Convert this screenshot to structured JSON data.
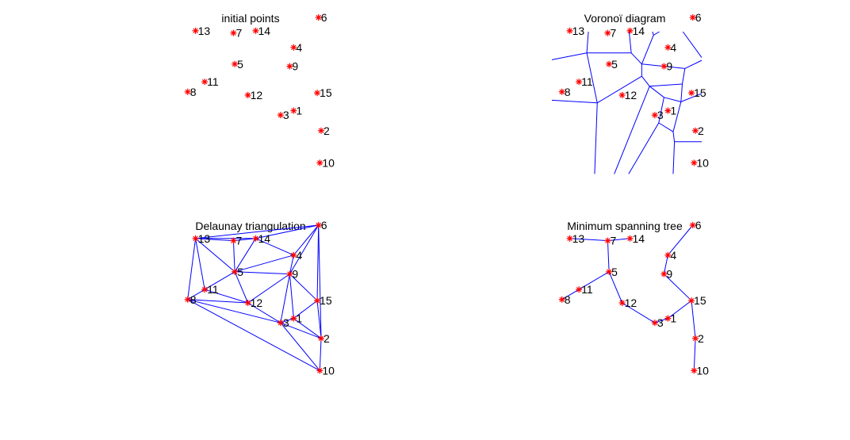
{
  "figure": {
    "edge_color": "#0000ff",
    "point_color": "#ff0000",
    "marker": "asterisk",
    "points": [
      {
        "id": "1",
        "label": "1",
        "x": 0.79,
        "y": 0.56
      },
      {
        "id": "2",
        "label": "2",
        "x": 1.0,
        "y": 0.38
      },
      {
        "id": "3",
        "label": "3",
        "x": 0.69,
        "y": 0.52
      },
      {
        "id": "4",
        "label": "4",
        "x": 0.79,
        "y": 1.13
      },
      {
        "id": "5",
        "label": "5",
        "x": 0.34,
        "y": 0.98
      },
      {
        "id": "6",
        "label": "6",
        "x": 0.98,
        "y": 1.4
      },
      {
        "id": "7",
        "label": "7",
        "x": 0.33,
        "y": 1.26
      },
      {
        "id": "8",
        "label": "8",
        "x": -0.02,
        "y": 0.73
      },
      {
        "id": "9",
        "label": "9",
        "x": 0.76,
        "y": 0.96
      },
      {
        "id": "10",
        "label": "10",
        "x": 0.99,
        "y": 0.09
      },
      {
        "id": "11",
        "label": "11",
        "x": 0.11,
        "y": 0.82
      },
      {
        "id": "12",
        "label": "12",
        "x": 0.44,
        "y": 0.7
      },
      {
        "id": "13",
        "label": "13",
        "x": 0.04,
        "y": 1.28
      },
      {
        "id": "14",
        "label": "14",
        "x": 0.5,
        "y": 1.28
      },
      {
        "id": "15",
        "label": "15",
        "x": 0.97,
        "y": 0.72
      }
    ],
    "panels": [
      {
        "id": "initial",
        "title": "initial points"
      },
      {
        "id": "voronoi",
        "title": "Voronoï diagram"
      },
      {
        "id": "delaunay",
        "title": "Delaunay triangulation"
      },
      {
        "id": "mst",
        "title": "Minimum spanning tree"
      }
    ],
    "voronoi_edges": [
      [
        [
          0.2,
          1.55
        ],
        [
          0.17,
          1.08
        ]
      ],
      [
        [
          0.47,
          1.55
        ],
        [
          0.51,
          1.08
        ]
      ],
      [
        [
          0.17,
          1.08
        ],
        [
          -0.18,
          1.0
        ]
      ],
      [
        [
          0.17,
          1.08
        ],
        [
          0.51,
          1.08
        ]
      ],
      [
        [
          0.17,
          1.08
        ],
        [
          0.25,
          0.63
        ]
      ],
      [
        [
          0.51,
          1.08
        ],
        [
          0.59,
          0.98
        ]
      ],
      [
        [
          0.25,
          0.63
        ],
        [
          -0.18,
          0.66
        ]
      ],
      [
        [
          0.25,
          0.63
        ],
        [
          0.59,
          0.87
        ]
      ],
      [
        [
          0.25,
          0.63
        ],
        [
          0.23,
          -0.01
        ]
      ],
      [
        [
          0.59,
          0.98
        ],
        [
          0.59,
          0.87
        ]
      ],
      [
        [
          0.59,
          0.98
        ],
        [
          0.68,
          1.24
        ]
      ],
      [
        [
          0.68,
          1.24
        ],
        [
          0.85,
          1.36
        ]
      ],
      [
        [
          0.85,
          1.36
        ],
        [
          1.06,
          1.02
        ]
      ],
      [
        [
          0.85,
          1.36
        ],
        [
          0.78,
          1.54
        ]
      ],
      [
        [
          0.68,
          1.24
        ],
        [
          0.61,
          1.53
        ]
      ],
      [
        [
          0.59,
          0.98
        ],
        [
          0.92,
          0.94
        ]
      ],
      [
        [
          0.92,
          0.94
        ],
        [
          1.06,
          1.02
        ]
      ],
      [
        [
          0.92,
          0.94
        ],
        [
          0.9,
          0.8
        ]
      ],
      [
        [
          0.9,
          0.8
        ],
        [
          0.65,
          0.78
        ]
      ],
      [
        [
          0.59,
          0.87
        ],
        [
          0.65,
          0.78
        ]
      ],
      [
        [
          0.65,
          0.78
        ],
        [
          0.38,
          -0.01
        ]
      ],
      [
        [
          0.65,
          0.78
        ],
        [
          0.76,
          0.68
        ]
      ],
      [
        [
          0.9,
          0.8
        ],
        [
          0.89,
          0.64
        ]
      ],
      [
        [
          0.89,
          0.64
        ],
        [
          0.76,
          0.68
        ]
      ],
      [
        [
          0.76,
          0.68
        ],
        [
          0.72,
          0.45
        ]
      ],
      [
        [
          0.72,
          0.45
        ],
        [
          0.49,
          -0.01
        ]
      ],
      [
        [
          0.72,
          0.45
        ],
        [
          0.83,
          0.37
        ]
      ],
      [
        [
          0.89,
          0.64
        ],
        [
          0.83,
          0.37
        ]
      ],
      [
        [
          0.89,
          0.64
        ],
        [
          1.06,
          0.72
        ]
      ],
      [
        [
          0.83,
          0.37
        ],
        [
          0.84,
          0.28
        ]
      ],
      [
        [
          0.84,
          0.28
        ],
        [
          1.06,
          0.28
        ]
      ],
      [
        [
          0.84,
          0.28
        ],
        [
          0.83,
          -0.01
        ]
      ]
    ],
    "delaunay_edges": [
      [
        "13",
        "7"
      ],
      [
        "13",
        "14"
      ],
      [
        "13",
        "6"
      ],
      [
        "13",
        "5"
      ],
      [
        "13",
        "11"
      ],
      [
        "13",
        "8"
      ],
      [
        "7",
        "14"
      ],
      [
        "7",
        "5"
      ],
      [
        "14",
        "6"
      ],
      [
        "14",
        "4"
      ],
      [
        "14",
        "5"
      ],
      [
        "6",
        "4"
      ],
      [
        "6",
        "9"
      ],
      [
        "6",
        "15"
      ],
      [
        "6",
        "2"
      ],
      [
        "4",
        "9"
      ],
      [
        "4",
        "5"
      ],
      [
        "5",
        "9"
      ],
      [
        "5",
        "12"
      ],
      [
        "5",
        "11"
      ],
      [
        "11",
        "8"
      ],
      [
        "11",
        "12"
      ],
      [
        "8",
        "12"
      ],
      [
        "8",
        "3"
      ],
      [
        "8",
        "10"
      ],
      [
        "12",
        "9"
      ],
      [
        "12",
        "3"
      ],
      [
        "9",
        "3"
      ],
      [
        "9",
        "1"
      ],
      [
        "9",
        "15"
      ],
      [
        "3",
        "1"
      ],
      [
        "3",
        "2"
      ],
      [
        "3",
        "10"
      ],
      [
        "1",
        "15"
      ],
      [
        "1",
        "2"
      ],
      [
        "15",
        "2"
      ],
      [
        "2",
        "10"
      ]
    ],
    "mst_edges": [
      [
        "13",
        "7"
      ],
      [
        "7",
        "14"
      ],
      [
        "7",
        "5"
      ],
      [
        "5",
        "11"
      ],
      [
        "11",
        "8"
      ],
      [
        "5",
        "12"
      ],
      [
        "12",
        "3"
      ],
      [
        "3",
        "1"
      ],
      [
        "1",
        "15"
      ],
      [
        "15",
        "9"
      ],
      [
        "9",
        "4"
      ],
      [
        "4",
        "6"
      ],
      [
        "15",
        "2"
      ],
      [
        "2",
        "10"
      ]
    ]
  }
}
